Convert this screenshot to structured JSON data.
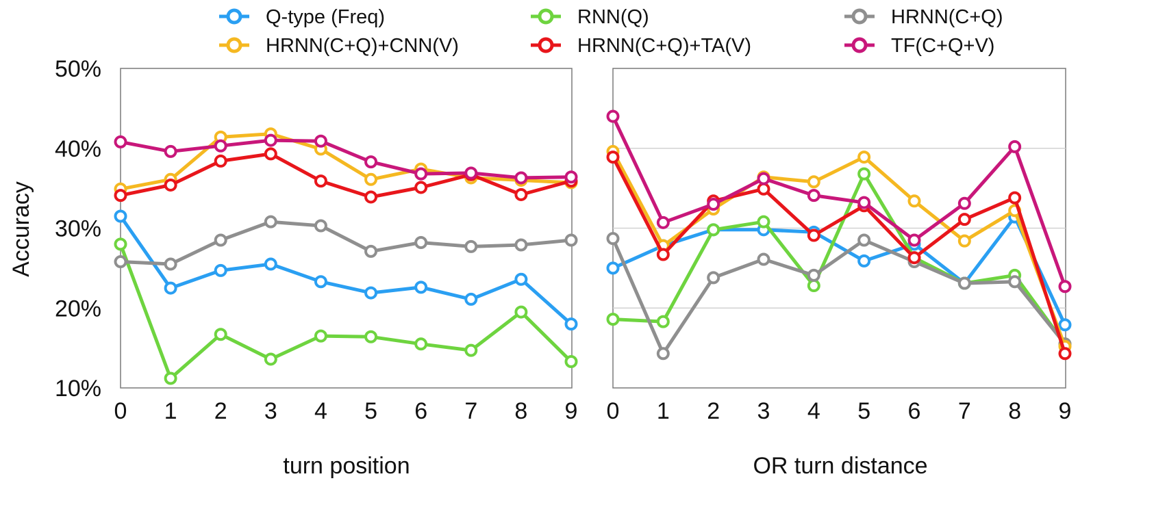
{
  "legend": [
    {
      "name": "Q-type (Freq)",
      "color": "#2a9ff2"
    },
    {
      "name": "RNN(Q)",
      "color": "#6ed43f"
    },
    {
      "name": "HRNN(C+Q)",
      "color": "#8f8f8f"
    },
    {
      "name": "HRNN(C+Q)+CNN(V)",
      "color": "#f5b821"
    },
    {
      "name": "HRNN(C+Q)+TA(V)",
      "color": "#e8161b"
    },
    {
      "name": "TF(C+Q+V)",
      "color": "#c8177a"
    }
  ],
  "y_axis": {
    "label": "Accuracy",
    "ticks": [
      "50%",
      "40%",
      "30%",
      "20%",
      "10%"
    ]
  },
  "chart_data": [
    {
      "type": "line",
      "xlabel": "turn position",
      "ylabel": "Accuracy",
      "ylim": [
        10,
        50
      ],
      "x": [
        "0",
        "1",
        "2",
        "3",
        "4",
        "5",
        "6",
        "7",
        "8",
        "9"
      ],
      "grid": false,
      "series": [
        {
          "name": "Q-type (Freq)",
          "color": "#2a9ff2",
          "values": [
            31.5,
            22.5,
            24.7,
            25.5,
            23.3,
            21.9,
            22.6,
            21.1,
            23.6,
            18.0
          ]
        },
        {
          "name": "RNN(Q)",
          "color": "#6ed43f",
          "values": [
            28.0,
            11.2,
            16.7,
            13.6,
            16.5,
            16.4,
            15.5,
            14.7,
            19.5,
            13.3
          ]
        },
        {
          "name": "HRNN(C+Q)",
          "color": "#8f8f8f",
          "values": [
            25.8,
            25.5,
            28.5,
            30.8,
            30.3,
            27.1,
            28.2,
            27.7,
            27.9,
            28.5
          ]
        },
        {
          "name": "HRNN(C+Q)+CNN(V)",
          "color": "#f5b821",
          "values": [
            34.9,
            36.1,
            41.4,
            41.8,
            39.9,
            36.1,
            37.4,
            36.3,
            36.0,
            35.7
          ]
        },
        {
          "name": "HRNN(C+Q)+TA(V)",
          "color": "#e8161b",
          "values": [
            34.1,
            35.4,
            38.4,
            39.3,
            35.9,
            33.9,
            35.1,
            36.7,
            34.2,
            35.9
          ]
        },
        {
          "name": "TF(C+Q+V)",
          "color": "#c8177a",
          "values": [
            40.8,
            39.6,
            40.3,
            41.0,
            40.9,
            38.3,
            36.8,
            36.9,
            36.3,
            36.4
          ]
        }
      ]
    },
    {
      "type": "line",
      "xlabel": "OR turn distance",
      "ylabel": "",
      "ylim": [
        10,
        50
      ],
      "x": [
        "0",
        "1",
        "2",
        "3",
        "4",
        "5",
        "6",
        "7",
        "8",
        "9"
      ],
      "grid": true,
      "series": [
        {
          "name": "Q-type (Freq)",
          "color": "#2a9ff2",
          "values": [
            25.0,
            27.8,
            29.8,
            29.8,
            29.5,
            25.9,
            28.0,
            23.1,
            31.4,
            17.9
          ]
        },
        {
          "name": "RNN(Q)",
          "color": "#6ed43f",
          "values": [
            18.6,
            18.3,
            29.8,
            30.8,
            22.8,
            36.8,
            26.3,
            23.1,
            24.1,
            15.5
          ]
        },
        {
          "name": "HRNN(C+Q)",
          "color": "#8f8f8f",
          "values": [
            28.7,
            14.3,
            23.8,
            26.1,
            24.1,
            28.5,
            25.8,
            23.1,
            23.3,
            15.5
          ]
        },
        {
          "name": "HRNN(C+Q)+CNN(V)",
          "color": "#f5b821",
          "values": [
            39.6,
            27.8,
            32.4,
            36.4,
            35.8,
            38.9,
            33.4,
            28.4,
            32.2,
            15.2
          ]
        },
        {
          "name": "HRNN(C+Q)+TA(V)",
          "color": "#e8161b",
          "values": [
            38.9,
            26.7,
            33.4,
            34.9,
            29.1,
            32.8,
            26.3,
            31.1,
            33.8,
            14.3
          ]
        },
        {
          "name": "TF(C+Q+V)",
          "color": "#c8177a",
          "values": [
            44.0,
            30.7,
            33.0,
            36.2,
            34.1,
            33.2,
            28.5,
            33.1,
            40.2,
            22.7
          ]
        }
      ]
    }
  ]
}
